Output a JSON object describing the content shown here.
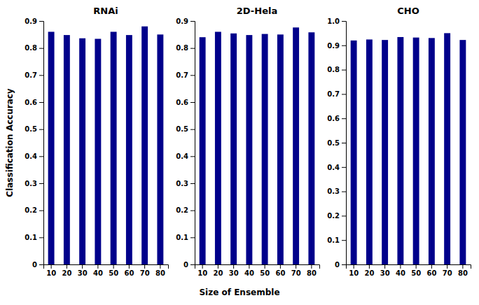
{
  "chart_data": [
    {
      "type": "bar",
      "title": "RNAi",
      "categories": [
        10,
        20,
        30,
        40,
        50,
        60,
        70,
        80
      ],
      "values": [
        0.86,
        0.848,
        0.836,
        0.834,
        0.86,
        0.848,
        0.88,
        0.85
      ],
      "color": "#00008B",
      "ylabel": "Classification Accuracy",
      "ylim": [
        0,
        0.9
      ],
      "yticks": [
        0,
        0.1,
        0.2,
        0.3,
        0.4,
        0.5,
        0.6,
        0.7,
        0.8,
        0.9
      ],
      "grid": false
    },
    {
      "type": "bar",
      "title": "2D-Hela",
      "categories": [
        10,
        20,
        30,
        40,
        50,
        60,
        70,
        80
      ],
      "values": [
        0.84,
        0.86,
        0.854,
        0.848,
        0.852,
        0.85,
        0.876,
        0.858
      ],
      "color": "#00008B",
      "xlabel": "Size of Ensemble",
      "ylim": [
        0,
        0.9
      ],
      "yticks": [
        0,
        0.1,
        0.2,
        0.3,
        0.4,
        0.5,
        0.6,
        0.7,
        0.8,
        0.9
      ],
      "grid": false
    },
    {
      "type": "bar",
      "title": "CHO",
      "categories": [
        10,
        20,
        30,
        40,
        50,
        60,
        70,
        80
      ],
      "values": [
        0.92,
        0.924,
        0.922,
        0.934,
        0.932,
        0.93,
        0.95,
        0.922
      ],
      "color": "#00008B",
      "ylim": [
        0,
        1.0
      ],
      "yticks": [
        0,
        0.1,
        0.2,
        0.3,
        0.4,
        0.5,
        0.6,
        0.7,
        0.8,
        0.9,
        {
          "value": 1.0,
          "label": "1.0"
        }
      ],
      "grid": false
    }
  ]
}
